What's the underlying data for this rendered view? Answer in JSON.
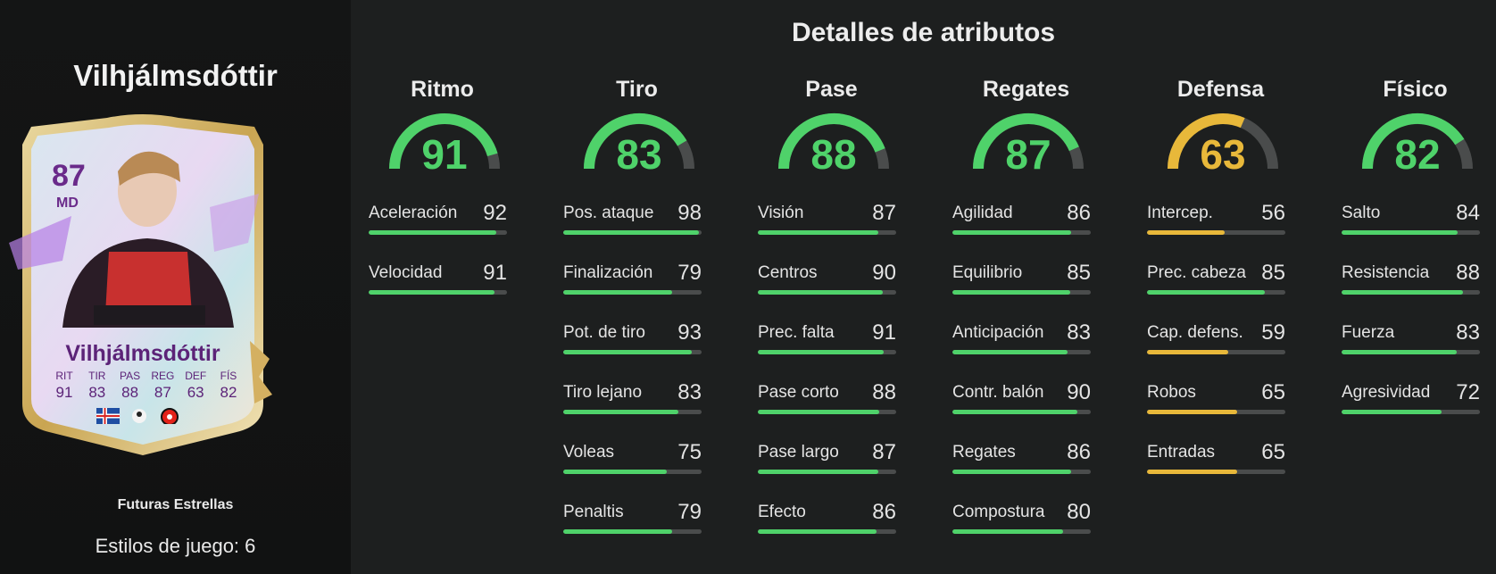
{
  "player": {
    "name": "Vilhjálmsdóttir",
    "promo": "Futuras Estrellas",
    "playstyles": "Estilos de juego: 6"
  },
  "card": {
    "rating": "87",
    "position": "MD",
    "name": "Vilhjálmsdóttir",
    "stat_labels": [
      "RIT",
      "TIR",
      "PAS",
      "REG",
      "DEF",
      "FÍS"
    ],
    "stat_values": [
      "91",
      "83",
      "88",
      "87",
      "63",
      "82"
    ]
  },
  "section_title": "Detalles de atributos",
  "colors": {
    "high": "#4fd26a",
    "mid": "#e8b83a",
    "track": "#4a4c4c"
  },
  "categories": [
    {
      "name": "Ritmo",
      "value": "91",
      "color": "#4fd26a",
      "attributes": [
        {
          "label": "Aceleración",
          "value": "92"
        },
        {
          "label": "Velocidad",
          "value": "91"
        }
      ]
    },
    {
      "name": "Tiro",
      "value": "83",
      "color": "#4fd26a",
      "attributes": [
        {
          "label": "Pos. ataque",
          "value": "98"
        },
        {
          "label": "Finalización",
          "value": "79"
        },
        {
          "label": "Pot. de tiro",
          "value": "93"
        },
        {
          "label": "Tiro lejano",
          "value": "83"
        },
        {
          "label": "Voleas",
          "value": "75"
        },
        {
          "label": "Penaltis",
          "value": "79"
        }
      ]
    },
    {
      "name": "Pase",
      "value": "88",
      "color": "#4fd26a",
      "attributes": [
        {
          "label": "Visión",
          "value": "87"
        },
        {
          "label": "Centros",
          "value": "90"
        },
        {
          "label": "Prec. falta",
          "value": "91"
        },
        {
          "label": "Pase corto",
          "value": "88"
        },
        {
          "label": "Pase largo",
          "value": "87"
        },
        {
          "label": "Efecto",
          "value": "86"
        }
      ]
    },
    {
      "name": "Regates",
      "value": "87",
      "color": "#4fd26a",
      "attributes": [
        {
          "label": "Agilidad",
          "value": "86"
        },
        {
          "label": "Equilibrio",
          "value": "85"
        },
        {
          "label": "Anticipación",
          "value": "83"
        },
        {
          "label": "Contr. balón",
          "value": "90"
        },
        {
          "label": "Regates",
          "value": "86"
        },
        {
          "label": "Compostura",
          "value": "80"
        }
      ]
    },
    {
      "name": "Defensa",
      "value": "63",
      "color": "#e8b83a",
      "attributes": [
        {
          "label": "Intercep.",
          "value": "56"
        },
        {
          "label": "Prec. cabeza",
          "value": "85"
        },
        {
          "label": "Cap. defens.",
          "value": "59"
        },
        {
          "label": "Robos",
          "value": "65"
        },
        {
          "label": "Entradas",
          "value": "65"
        }
      ]
    },
    {
      "name": "Físico",
      "value": "82",
      "color": "#4fd26a",
      "attributes": [
        {
          "label": "Salto",
          "value": "84"
        },
        {
          "label": "Resistencia",
          "value": "88"
        },
        {
          "label": "Fuerza",
          "value": "83"
        },
        {
          "label": "Agresividad",
          "value": "72"
        }
      ]
    }
  ]
}
